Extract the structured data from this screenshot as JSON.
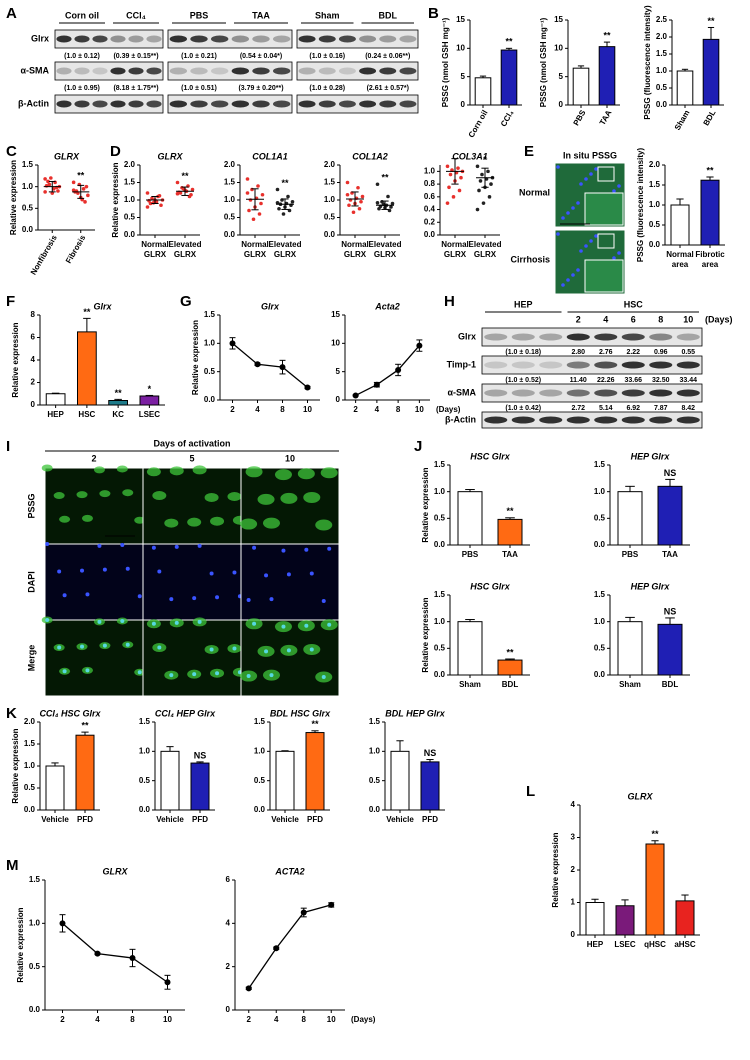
{
  "panels": [
    "A",
    "B",
    "C",
    "D",
    "E",
    "F",
    "G",
    "H",
    "I",
    "J",
    "K",
    "L",
    "M"
  ],
  "blot_A": {
    "rows": [
      "Glrx",
      "α-SMA",
      "β-Actin"
    ],
    "panels": [
      {
        "groups": [
          "Corn oil",
          "CCl₄"
        ],
        "quant": [
          [
            "(1.0 ± 0.12)",
            "(0.39 ± 0.15**)"
          ],
          [
            "(1.0 ± 0.95)",
            "(8.18 ± 1.75**)"
          ]
        ]
      },
      {
        "groups": [
          "PBS",
          "TAA"
        ],
        "quant": [
          [
            "(1.0 ± 0.21)",
            "(0.54 ± 0.04*)"
          ],
          [
            "(1.0 ± 0.51)",
            "(3.79 ± 0.20**)"
          ]
        ]
      },
      {
        "groups": [
          "Sham",
          "BDL"
        ],
        "quant": [
          [
            "(1.0 ± 0.16)",
            "(0.24 ± 0.06**)"
          ],
          [
            "(1.0 ± 0.28)",
            "(2.61 ± 0.57*)"
          ]
        ]
      }
    ]
  },
  "blot_H": {
    "groups": [
      "HEP",
      "HSC"
    ],
    "days": [
      "2",
      "4",
      "6",
      "8",
      "10"
    ],
    "days_unit": "(Days)",
    "rows": [
      {
        "label": "Glrx",
        "quant": [
          "(1.0 ± 0.18)",
          "2.80",
          "2.76",
          "2.22",
          "0.96",
          "0.55"
        ]
      },
      {
        "label": "Timp-1",
        "quant": [
          "(1.0 ± 0.52)",
          "11.40",
          "22.26",
          "33.66",
          "32.50",
          "33.44"
        ]
      },
      {
        "label": "α-SMA",
        "quant": [
          "(1.0 ± 0.42)",
          "2.72",
          "5.14",
          "6.92",
          "7.87",
          "8.42"
        ]
      },
      {
        "label": "β-Actin"
      }
    ]
  },
  "images_E": {
    "title": "In situ PSSG",
    "rows": [
      "Normal",
      "Cirrhosis"
    ]
  },
  "images_I": {
    "title": "Days of activation",
    "columns": [
      "2",
      "5",
      "10"
    ],
    "rows": [
      "PSSG",
      "DAPI",
      "Merge"
    ]
  },
  "chart_data": [
    {
      "type": "bar",
      "ylabel": "PSSG (nmol GSH mg⁻¹)",
      "categories": [
        "Corn oil",
        "CCl₄"
      ],
      "values": [
        4.8,
        9.7
      ],
      "errors": [
        0.3,
        0.3
      ],
      "colors": [
        "#ffffff",
        "#1f1fb4"
      ],
      "significance": [
        null,
        "**"
      ],
      "ylim": [
        0,
        15
      ],
      "yticks": [
        0,
        5,
        10,
        15
      ]
    },
    {
      "type": "bar",
      "ylabel": "PSSG (nmol GSH mg⁻¹)",
      "categories": [
        "PBS",
        "TAA"
      ],
      "values": [
        6.5,
        10.3
      ],
      "errors": [
        0.4,
        0.8
      ],
      "colors": [
        "#ffffff",
        "#1f1fb4"
      ],
      "significance": [
        null,
        "**"
      ],
      "ylim": [
        0,
        15
      ],
      "yticks": [
        0,
        5,
        10,
        15
      ]
    },
    {
      "type": "bar",
      "ylabel": "PSSG (fluorescence intensity)",
      "categories": [
        "Sham",
        "BDL"
      ],
      "values": [
        1.0,
        1.93
      ],
      "errors": [
        0.05,
        0.35
      ],
      "colors": [
        "#ffffff",
        "#1f1fb4"
      ],
      "significance": [
        null,
        "**"
      ],
      "ylim": [
        0,
        2.5
      ],
      "yticks": [
        {
          "value": 0,
          "label": "0.0"
        },
        0.5,
        {
          "value": 1,
          "label": "1.0"
        },
        1.5,
        {
          "value": 2,
          "label": "2.0"
        },
        2.5
      ]
    },
    {
      "type": "scatter",
      "title": "GLRX",
      "ylabel": "Relative expression",
      "categories": [
        "Nonfibrosis",
        "Fibrosis"
      ],
      "groups": [
        {
          "color": "#e8302c",
          "points": [
            1.18,
            1.1,
            1.05,
            1.0,
            0.95,
            1.12,
            0.9,
            0.85,
            1.02,
            0.98,
            1.2,
            0.88
          ],
          "mean": 1.0,
          "sd": 0.12
        },
        {
          "color": "#e8302c",
          "points": [
            1.1,
            0.95,
            0.85,
            0.8,
            0.7,
            0.9,
            1.0,
            0.75,
            0.88,
            0.65,
            1.05,
            0.92
          ],
          "mean": 0.88,
          "sd": 0.15
        }
      ],
      "significance": [
        null,
        "**"
      ],
      "ylim": [
        0,
        1.5
      ],
      "yticks": [
        {
          "value": 0,
          "label": "0.0"
        },
        0.5,
        {
          "value": 1,
          "label": "1.0"
        },
        1.5
      ]
    },
    {
      "type": "scatter",
      "title": "GLRX",
      "ylabel": "Relative expression",
      "categories": [
        [
          "Normal",
          "GLRX"
        ],
        [
          "Elevated",
          "GLRX"
        ]
      ],
      "groups": [
        {
          "color": "#e8302c",
          "points": [
            1.2,
            1.1,
            1.05,
            1.0,
            0.95,
            0.9,
            0.85,
            1.0,
            0.98,
            1.12,
            0.92,
            0.8
          ],
          "mean": 1.0,
          "sd": 0.1
        },
        {
          "color": "#e8302c",
          "points": [
            1.5,
            1.4,
            1.35,
            1.3,
            1.25,
            1.2,
            1.15,
            1.28,
            1.22,
            1.1,
            1.32,
            1.18
          ],
          "mean": 1.25,
          "sd": 0.12
        }
      ],
      "significance": [
        null,
        "**"
      ],
      "ylim": [
        0,
        2
      ],
      "yticks": [
        {
          "value": 0,
          "label": "0.0"
        },
        0.5,
        {
          "value": 1,
          "label": "1.0"
        },
        1.5,
        {
          "value": 2,
          "label": "2.0"
        }
      ]
    },
    {
      "type": "scatter",
      "title": "COL1A1",
      "categories": [
        [
          "Normal",
          "GLRX"
        ],
        [
          "Elevated",
          "GLRX"
        ]
      ],
      "groups": [
        {
          "color": "#e8302c",
          "points": [
            1.6,
            1.4,
            1.3,
            1.15,
            1.05,
            1.0,
            0.9,
            0.8,
            0.7,
            0.6,
            0.45,
            1.2
          ],
          "mean": 1.02,
          "sd": 0.3
        },
        {
          "color": "#222222",
          "points": [
            1.3,
            1.1,
            1.0,
            0.95,
            0.9,
            0.88,
            0.85,
            0.8,
            0.75,
            0.7,
            0.6,
            0.92
          ],
          "mean": 0.88,
          "sd": 0.15
        }
      ],
      "significance": [
        null,
        "**"
      ],
      "ylim": [
        0,
        2
      ],
      "yticks": [
        {
          "value": 0,
          "label": "0.0"
        },
        0.5,
        {
          "value": 1,
          "label": "1.0"
        },
        1.5,
        {
          "value": 2,
          "label": "2.0"
        }
      ]
    },
    {
      "type": "scatter",
      "title": "COL1A2",
      "categories": [
        [
          "Normal",
          "GLRX"
        ],
        [
          "Elevated",
          "GLRX"
        ]
      ],
      "groups": [
        {
          "color": "#e8302c",
          "points": [
            1.5,
            1.35,
            1.2,
            1.1,
            1.05,
            1.0,
            0.95,
            0.9,
            0.85,
            0.75,
            0.65,
            1.15
          ],
          "mean": 1.03,
          "sd": 0.2
        },
        {
          "color": "#222222",
          "points": [
            1.45,
            1.1,
            0.95,
            0.9,
            0.85,
            0.82,
            0.8,
            0.78,
            0.75,
            0.7,
            0.88,
            0.92
          ],
          "mean": 0.85,
          "sd": 0.12
        }
      ],
      "significance": [
        null,
        "**"
      ],
      "ylim": [
        0,
        2
      ],
      "yticks": [
        {
          "value": 0,
          "label": "0.0"
        },
        0.5,
        {
          "value": 1,
          "label": "1.0"
        },
        1.5,
        {
          "value": 2,
          "label": "2.0"
        }
      ]
    },
    {
      "type": "scatter",
      "title": "COL3A1",
      "categories": [
        [
          "Normal",
          "GLRX"
        ],
        [
          "Elevated",
          "GLRX"
        ]
      ],
      "groups": [
        {
          "color": "#e8302c",
          "points": [
            1.08,
            1.05,
            1.02,
            1.0,
            0.98,
            0.95,
            0.9,
            0.85,
            0.75,
            0.7,
            0.6,
            0.5
          ],
          "mean": 1.0,
          "sd": 0.2
        },
        {
          "color": "#222222",
          "points": [
            1.08,
            1.0,
            0.95,
            0.9,
            0.88,
            0.85,
            0.8,
            0.75,
            0.7,
            0.6,
            0.5,
            0.4
          ],
          "mean": 0.9,
          "sd": 0.15
        }
      ],
      "significance": [
        null,
        "*"
      ],
      "ylim": [
        0,
        1.1
      ],
      "yticks": [
        {
          "value": 0,
          "label": "0.0"
        },
        0.2,
        0.4,
        0.6,
        0.8,
        {
          "value": 1,
          "label": "1.0"
        }
      ]
    },
    {
      "type": "bar",
      "ylabel": "PSSG (fluorescence intensity)",
      "categories": [
        [
          "Normal",
          "area"
        ],
        [
          "Fibrotic",
          "area"
        ]
      ],
      "values": [
        1.0,
        1.62
      ],
      "errors": [
        0.15,
        0.08
      ],
      "colors": [
        "#ffffff",
        "#1f1fb4"
      ],
      "significance": [
        null,
        "**"
      ],
      "ylim": [
        0,
        2
      ],
      "yticks": [
        {
          "value": 0,
          "label": "0.0"
        },
        0.5,
        {
          "value": 1,
          "label": "1.0"
        },
        1.5,
        {
          "value": 2,
          "label": "2.0"
        }
      ]
    },
    {
      "type": "bar",
      "title": "Glrx",
      "ylabel": "Relative expression",
      "categories": [
        "HEP",
        "HSC",
        "KC",
        "LSEC"
      ],
      "values": [
        1.0,
        6.5,
        0.4,
        0.8
      ],
      "errors": [
        0.05,
        1.2,
        0.1,
        0.05
      ],
      "colors": [
        "#ffffff",
        "#ff6a13",
        "#1e7b8a",
        "#7b1fa2"
      ],
      "significance": [
        null,
        "**",
        "**",
        "*"
      ],
      "ylim": [
        0,
        8
      ],
      "yticks": [
        0,
        2,
        4,
        6,
        8
      ]
    },
    {
      "type": "line",
      "title": "Glrx",
      "ylabel": "Relative expression",
      "categories": [
        "2",
        "4",
        "8",
        "10"
      ],
      "values": [
        1.0,
        0.63,
        0.58,
        0.22
      ],
      "errors": [
        0.1,
        0.02,
        0.12,
        0.02
      ],
      "color": "#000000",
      "ylim": [
        0,
        1.5
      ],
      "yticks": [
        {
          "value": 0,
          "label": "0.0"
        },
        0.5,
        {
          "value": 1,
          "label": "1.0"
        },
        1.5
      ]
    },
    {
      "type": "line",
      "title": "Acta2",
      "xlabel": "(Days)",
      "categories": [
        "2",
        "4",
        "8",
        "10"
      ],
      "values": [
        0.8,
        2.7,
        5.3,
        9.6
      ],
      "errors": [
        0.1,
        0.4,
        1.0,
        1.0
      ],
      "color": "#000000",
      "ylim": [
        0,
        15
      ],
      "yticks": [
        0,
        5,
        10,
        15
      ]
    },
    {
      "type": "bar",
      "title": "HSC Glrx",
      "ylabel": "Relative expression",
      "categories": [
        "PBS",
        "TAA"
      ],
      "values": [
        1.0,
        0.48
      ],
      "errors": [
        0.04,
        0.03
      ],
      "colors": [
        "#ffffff",
        "#ff6a13"
      ],
      "significance": [
        null,
        "**"
      ],
      "ylim": [
        0,
        1.5
      ],
      "yticks": [
        {
          "value": 0,
          "label": "0.0"
        },
        0.5,
        {
          "value": 1,
          "label": "1.0"
        },
        1.5
      ]
    },
    {
      "type": "bar",
      "title": "HEP Glrx",
      "categories": [
        "PBS",
        "TAA"
      ],
      "values": [
        1.0,
        1.1
      ],
      "errors": [
        0.1,
        0.13
      ],
      "colors": [
        "#ffffff",
        "#1f1fb4"
      ],
      "significance": [
        null,
        "NS"
      ],
      "ylim": [
        0,
        1.5
      ],
      "yticks": [
        {
          "value": 0,
          "label": "0.0"
        },
        0.5,
        {
          "value": 1,
          "label": "1.0"
        },
        1.5
      ]
    },
    {
      "type": "bar",
      "title": "HSC Glrx",
      "ylabel": "Relative expression",
      "categories": [
        "Sham",
        "BDL"
      ],
      "values": [
        1.0,
        0.28
      ],
      "errors": [
        0.04,
        0.02
      ],
      "colors": [
        "#ffffff",
        "#ff6a13"
      ],
      "significance": [
        null,
        "**"
      ],
      "ylim": [
        0,
        1.5
      ],
      "yticks": [
        {
          "value": 0,
          "label": "0.0"
        },
        0.5,
        {
          "value": 1,
          "label": "1.0"
        },
        1.5
      ]
    },
    {
      "type": "bar",
      "title": "HEP Glrx",
      "categories": [
        "Sham",
        "BDL"
      ],
      "values": [
        1.0,
        0.95
      ],
      "errors": [
        0.08,
        0.12
      ],
      "colors": [
        "#ffffff",
        "#1f1fb4"
      ],
      "significance": [
        null,
        "NS"
      ],
      "ylim": [
        0,
        1.5
      ],
      "yticks": [
        {
          "value": 0,
          "label": "0.0"
        },
        0.5,
        {
          "value": 1,
          "label": "1.0"
        },
        1.5
      ]
    },
    {
      "type": "bar",
      "title": "CCl₄ HSC Glrx",
      "ylabel": "Relative expression",
      "categories": [
        "Vehicle",
        "PFD"
      ],
      "values": [
        1.0,
        1.7
      ],
      "errors": [
        0.07,
        0.07
      ],
      "colors": [
        "#ffffff",
        "#ff6a13"
      ],
      "significance": [
        null,
        "**"
      ],
      "ylim": [
        0,
        2
      ],
      "yticks": [
        {
          "value": 0,
          "label": "0.0"
        },
        0.5,
        {
          "value": 1,
          "label": "1.0"
        },
        1.5,
        {
          "value": 2,
          "label": "2.0"
        }
      ]
    },
    {
      "type": "bar",
      "title": "CCl₄ HEP Glrx",
      "categories": [
        "Vehicle",
        "PFD"
      ],
      "values": [
        1.0,
        0.8
      ],
      "errors": [
        0.08,
        0.02
      ],
      "colors": [
        "#ffffff",
        "#1f1fb4"
      ],
      "significance": [
        null,
        "NS"
      ],
      "ylim": [
        0,
        1.5
      ],
      "yticks": [
        {
          "value": 0,
          "label": "0.0"
        },
        0.5,
        {
          "value": 1,
          "label": "1.0"
        },
        1.5
      ]
    },
    {
      "type": "bar",
      "title": "BDL HSC Glrx",
      "categories": [
        "Vehicle",
        "PFD"
      ],
      "values": [
        1.0,
        1.32
      ],
      "errors": [
        0.01,
        0.03
      ],
      "colors": [
        "#ffffff",
        "#ff6a13"
      ],
      "significance": [
        null,
        "**"
      ],
      "ylim": [
        0,
        1.5
      ],
      "yticks": [
        {
          "value": 0,
          "label": "0.0"
        },
        0.5,
        {
          "value": 1,
          "label": "1.0"
        },
        1.5
      ]
    },
    {
      "type": "bar",
      "title": "BDL HEP Glrx",
      "categories": [
        "Vehicle",
        "PFD"
      ],
      "values": [
        1.0,
        0.82
      ],
      "errors": [
        0.18,
        0.04
      ],
      "colors": [
        "#ffffff",
        "#1f1fb4"
      ],
      "significance": [
        null,
        "NS"
      ],
      "ylim": [
        0,
        1.5
      ],
      "yticks": [
        {
          "value": 0,
          "label": "0.0"
        },
        0.5,
        {
          "value": 1,
          "label": "1.0"
        },
        1.5
      ]
    },
    {
      "type": "bar",
      "title": "GLRX",
      "ylabel": "Relative expression",
      "categories": [
        "HEP",
        "LSEC",
        "qHSC",
        "aHSC"
      ],
      "values": [
        1.0,
        0.9,
        2.8,
        1.05
      ],
      "errors": [
        0.1,
        0.18,
        0.1,
        0.18
      ],
      "colors": [
        "#ffffff",
        "#7a1a7a",
        "#ff6a13",
        "#e8231f"
      ],
      "significance": [
        null,
        null,
        "**",
        null
      ],
      "ylim": [
        0,
        4
      ],
      "yticks": [
        0,
        1,
        2,
        3,
        4
      ]
    },
    {
      "type": "line",
      "title": "GLRX",
      "ylabel": "Relative expression",
      "categories": [
        "2",
        "4",
        "8",
        "10"
      ],
      "values": [
        1.0,
        0.65,
        0.6,
        0.32
      ],
      "errors": [
        0.1,
        0.01,
        0.1,
        0.08
      ],
      "color": "#000000",
      "ylim": [
        0,
        1.5
      ],
      "yticks": [
        {
          "value": 0,
          "label": "0.0"
        },
        0.5,
        {
          "value": 1,
          "label": "1.0"
        },
        1.5
      ]
    },
    {
      "type": "line",
      "title": "ACTA2",
      "xlabel": "(Days)",
      "categories": [
        "2",
        "4",
        "8",
        "10"
      ],
      "values": [
        1.0,
        2.85,
        4.5,
        4.85
      ],
      "errors": [
        0.05,
        0.05,
        0.2,
        0.1
      ],
      "color": "#000000",
      "ylim": [
        0,
        6
      ],
      "yticks": [
        0,
        2,
        4,
        6
      ]
    }
  ]
}
